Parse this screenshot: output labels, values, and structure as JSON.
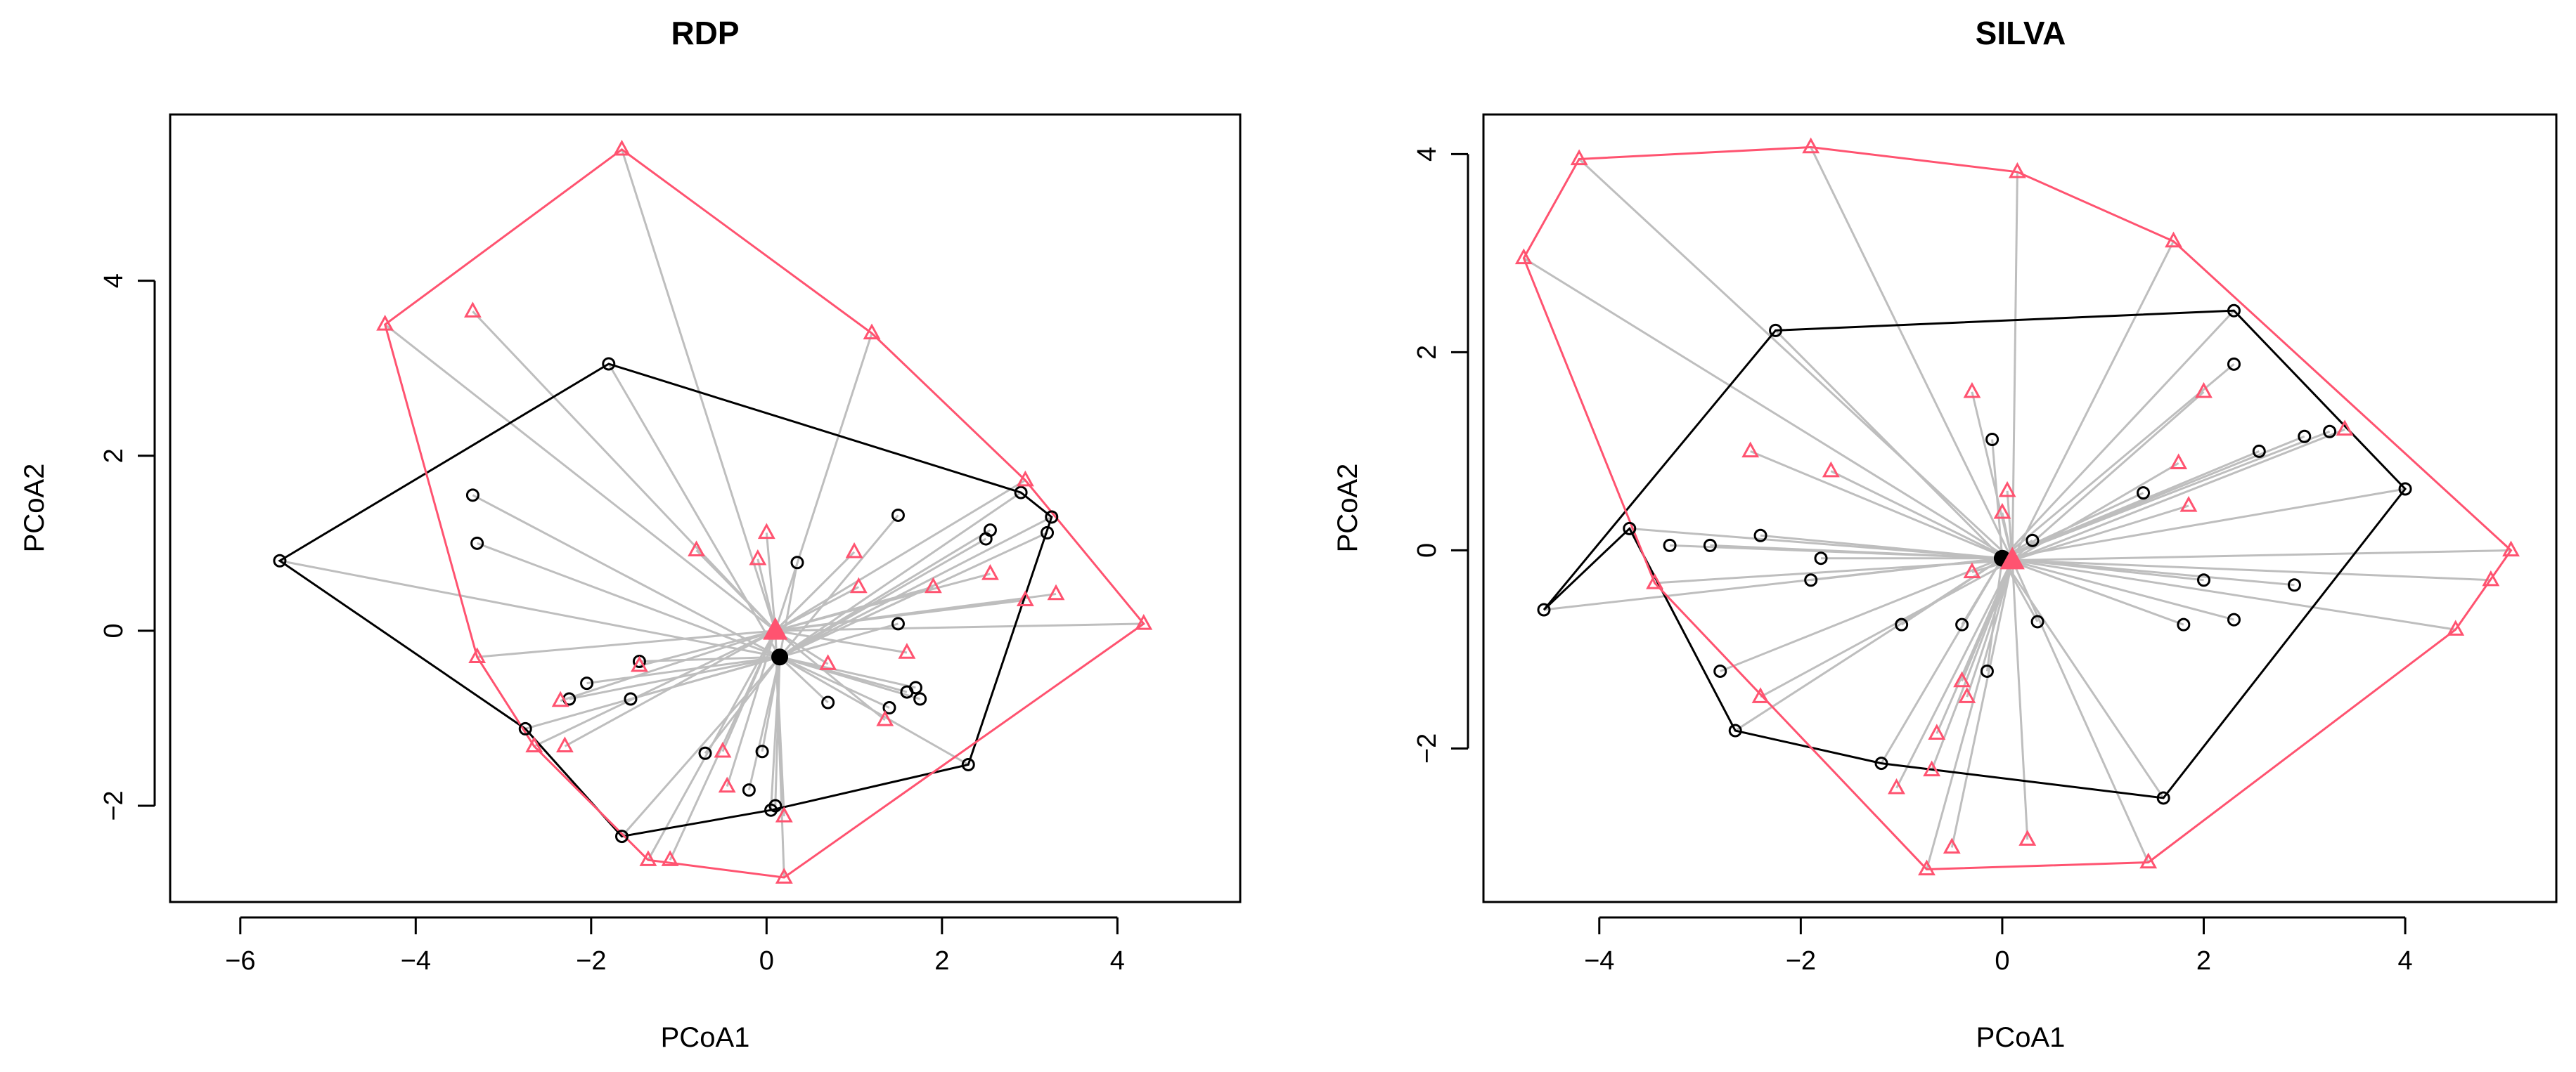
{
  "chart_data": [
    {
      "type": "scatter",
      "title": "RDP",
      "xlabel": "PCoA1",
      "ylabel": "PCoA2",
      "xlim": [
        -6.8,
        5.4
      ],
      "ylim": [
        -3.1,
        5.9
      ],
      "xticks": [
        -6,
        -4,
        -2,
        0,
        2,
        4
      ],
      "yticks": [
        -2,
        0,
        2,
        4
      ],
      "grid": false,
      "colors": {
        "group1": "#000000",
        "group2": "#ff5370",
        "spider": "#bebebe"
      },
      "series": [
        {
          "marker": "circle",
          "color": "#000000",
          "centroid": [
            0.15,
            -0.3
          ],
          "hull": [
            [
              -5.55,
              0.8
            ],
            [
              -1.8,
              3.05
            ],
            [
              2.9,
              1.58
            ],
            [
              3.25,
              1.3
            ],
            [
              2.3,
              -1.53
            ],
            [
              0.05,
              -2.05
            ],
            [
              -1.65,
              -2.35
            ],
            [
              -2.75,
              -1.12
            ]
          ],
          "points": [
            [
              -5.55,
              0.8
            ],
            [
              -1.8,
              3.05
            ],
            [
              -3.35,
              1.55
            ],
            [
              -3.3,
              1.0
            ],
            [
              2.9,
              1.58
            ],
            [
              3.25,
              1.3
            ],
            [
              3.2,
              1.12
            ],
            [
              2.55,
              1.15
            ],
            [
              2.5,
              1.05
            ],
            [
              1.5,
              1.32
            ],
            [
              0.35,
              0.78
            ],
            [
              1.5,
              0.08
            ],
            [
              1.6,
              -0.7
            ],
            [
              1.7,
              -0.65
            ],
            [
              1.75,
              -0.78
            ],
            [
              1.4,
              -0.88
            ],
            [
              0.7,
              -0.82
            ],
            [
              2.3,
              -1.53
            ],
            [
              -0.05,
              -1.38
            ],
            [
              -0.7,
              -1.4
            ],
            [
              -0.2,
              -1.82
            ],
            [
              0.05,
              -2.05
            ],
            [
              0.1,
              -2.0
            ],
            [
              -1.65,
              -2.35
            ],
            [
              -2.75,
              -1.12
            ],
            [
              -2.25,
              -0.78
            ],
            [
              -2.05,
              -0.6
            ],
            [
              -1.55,
              -0.78
            ],
            [
              -1.45,
              -0.35
            ]
          ]
        },
        {
          "marker": "triangle",
          "color": "#ff5370",
          "centroid": [
            0.1,
            0.0
          ],
          "hull": [
            [
              -1.65,
              5.5
            ],
            [
              1.2,
              3.4
            ],
            [
              2.95,
              1.72
            ],
            [
              4.3,
              0.08
            ],
            [
              0.2,
              -2.82
            ],
            [
              -1.35,
              -2.62
            ],
            [
              -2.65,
              -1.32
            ],
            [
              -3.3,
              -0.3
            ],
            [
              -4.35,
              3.5
            ]
          ],
          "points": [
            [
              -1.65,
              5.5
            ],
            [
              -4.35,
              3.5
            ],
            [
              -3.35,
              3.65
            ],
            [
              1.2,
              3.4
            ],
            [
              2.95,
              1.72
            ],
            [
              4.3,
              0.08
            ],
            [
              3.3,
              0.42
            ],
            [
              2.95,
              0.35
            ],
            [
              2.55,
              0.65
            ],
            [
              1.9,
              0.5
            ],
            [
              1.05,
              0.5
            ],
            [
              1.0,
              0.9
            ],
            [
              0.0,
              1.12
            ],
            [
              -0.1,
              0.82
            ],
            [
              -0.8,
              0.92
            ],
            [
              1.6,
              -0.25
            ],
            [
              0.7,
              -0.38
            ],
            [
              1.35,
              -1.02
            ],
            [
              -0.5,
              -1.38
            ],
            [
              -0.45,
              -1.78
            ],
            [
              0.2,
              -2.12
            ],
            [
              0.2,
              -2.82
            ],
            [
              -1.1,
              -2.62
            ],
            [
              -1.35,
              -2.62
            ],
            [
              -2.65,
              -1.32
            ],
            [
              -2.3,
              -1.32
            ],
            [
              -2.35,
              -0.8
            ],
            [
              -1.45,
              -0.4
            ],
            [
              -3.3,
              -0.3
            ]
          ]
        }
      ]
    },
    {
      "type": "scatter",
      "title": "SILVA",
      "xlabel": "PCoA1",
      "ylabel": "PCoA2",
      "xlim": [
        -5.15,
        5.5
      ],
      "ylim": [
        -3.55,
        4.4
      ],
      "xticks": [
        -4,
        -2,
        0,
        2,
        4
      ],
      "yticks": [
        -2,
        0,
        2,
        4
      ],
      "grid": false,
      "colors": {
        "group1": "#000000",
        "group2": "#ff5370",
        "spider": "#bebebe"
      },
      "series": [
        {
          "marker": "circle",
          "color": "#000000",
          "centroid": [
            0.0,
            -0.08
          ],
          "hull": [
            [
              -4.55,
              -0.6
            ],
            [
              -2.25,
              2.22
            ],
            [
              2.3,
              2.42
            ],
            [
              4.0,
              0.62
            ],
            [
              1.6,
              -2.5
            ],
            [
              -1.2,
              -2.15
            ],
            [
              -2.65,
              -1.82
            ],
            [
              -3.7,
              0.22
            ]
          ],
          "points": [
            [
              -4.55,
              -0.6
            ],
            [
              -2.25,
              2.22
            ],
            [
              2.3,
              2.42
            ],
            [
              2.3,
              1.88
            ],
            [
              3.0,
              1.15
            ],
            [
              3.25,
              1.2
            ],
            [
              2.55,
              1.0
            ],
            [
              4.0,
              0.62
            ],
            [
              1.4,
              0.58
            ],
            [
              -0.1,
              1.12
            ],
            [
              0.3,
              0.1
            ],
            [
              -3.7,
              0.22
            ],
            [
              -3.3,
              0.05
            ],
            [
              -2.9,
              0.05
            ],
            [
              -2.4,
              0.15
            ],
            [
              -1.8,
              -0.08
            ],
            [
              -1.9,
              -0.3
            ],
            [
              2.0,
              -0.3
            ],
            [
              2.9,
              -0.35
            ],
            [
              1.8,
              -0.75
            ],
            [
              2.3,
              -0.7
            ],
            [
              0.35,
              -0.72
            ],
            [
              -0.4,
              -0.75
            ],
            [
              -1.0,
              -0.75
            ],
            [
              -0.15,
              -1.22
            ],
            [
              -2.8,
              -1.22
            ],
            [
              -2.65,
              -1.82
            ],
            [
              -1.2,
              -2.15
            ],
            [
              1.6,
              -2.5
            ]
          ]
        },
        {
          "marker": "triangle",
          "color": "#ff5370",
          "centroid": [
            0.1,
            -0.1
          ],
          "hull": [
            [
              -4.75,
              2.95
            ],
            [
              -4.2,
              3.95
            ],
            [
              -1.9,
              4.07
            ],
            [
              0.15,
              3.82
            ],
            [
              1.7,
              3.12
            ],
            [
              5.05,
              0.0
            ],
            [
              4.5,
              -0.8
            ],
            [
              1.45,
              -3.15
            ],
            [
              -0.75,
              -3.22
            ],
            [
              -3.45,
              -0.33
            ]
          ],
          "points": [
            [
              -4.75,
              2.95
            ],
            [
              -4.2,
              3.95
            ],
            [
              -1.9,
              4.07
            ],
            [
              0.15,
              3.82
            ],
            [
              1.7,
              3.12
            ],
            [
              5.05,
              0.0
            ],
            [
              4.85,
              -0.3
            ],
            [
              4.5,
              -0.8
            ],
            [
              3.4,
              1.22
            ],
            [
              2.0,
              1.6
            ],
            [
              1.75,
              0.88
            ],
            [
              1.85,
              0.45
            ],
            [
              -0.3,
              1.6
            ],
            [
              0.05,
              0.6
            ],
            [
              -2.5,
              1.0
            ],
            [
              -1.7,
              0.8
            ],
            [
              0.0,
              0.38
            ],
            [
              -0.3,
              -0.22
            ],
            [
              -3.45,
              -0.33
            ],
            [
              -0.4,
              -1.32
            ],
            [
              -0.35,
              -1.48
            ],
            [
              -0.65,
              -1.85
            ],
            [
              -2.4,
              -1.48
            ],
            [
              -0.7,
              -2.22
            ],
            [
              -1.05,
              -2.4
            ],
            [
              -0.5,
              -3.0
            ],
            [
              0.25,
              -2.92
            ],
            [
              -0.75,
              -3.22
            ],
            [
              1.45,
              -3.15
            ]
          ]
        }
      ]
    }
  ]
}
